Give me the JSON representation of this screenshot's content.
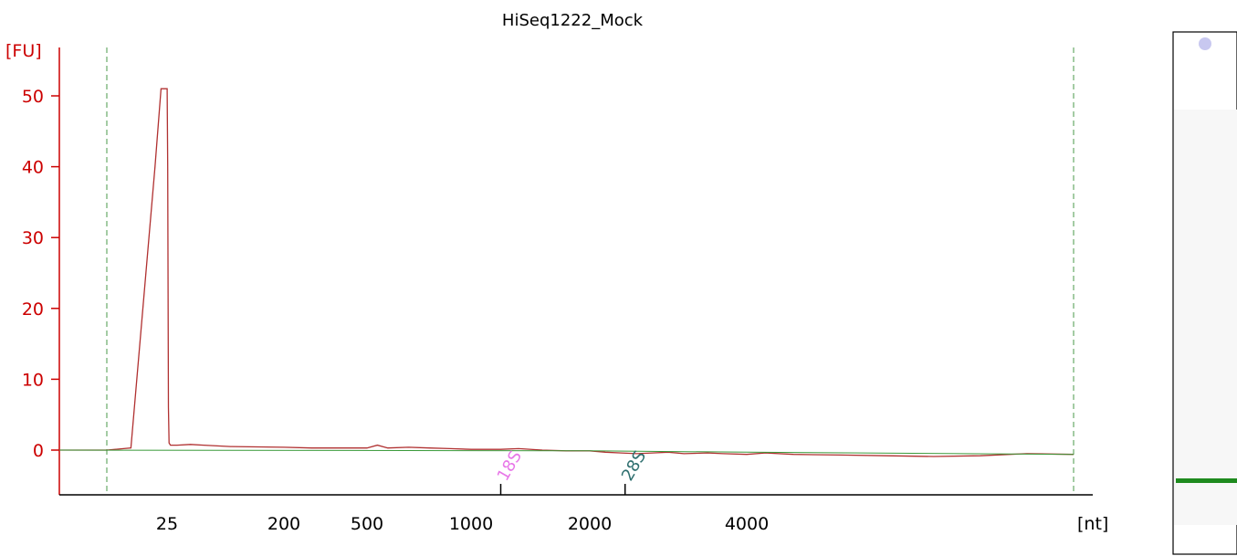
{
  "chart_data": {
    "type": "line",
    "title": "HiSeq1222_Mock",
    "yunit": "[FU]",
    "xunit": "[nt]",
    "yticks": [
      0,
      10,
      20,
      30,
      40,
      50
    ],
    "ylim": [
      -6,
      56
    ],
    "xticks": [
      "25",
      "200",
      "500",
      "1000",
      "2000",
      "4000"
    ],
    "markers": [
      {
        "label": "18S",
        "color": "#e878e8",
        "x": 1250
      },
      {
        "label": "28S",
        "color": "#2f6f6f",
        "x": 2450
      }
    ],
    "series": [
      {
        "color": "#b03030",
        "points": [
          [
            0,
            0
          ],
          [
            20,
            0
          ],
          [
            22,
            0.3
          ],
          [
            24,
            40
          ],
          [
            24.5,
            51
          ],
          [
            25.2,
            51
          ],
          [
            26,
            40
          ],
          [
            27,
            6
          ],
          [
            28,
            1
          ],
          [
            30,
            0.7
          ],
          [
            40,
            0.7
          ],
          [
            60,
            0.8
          ],
          [
            80,
            0.7
          ],
          [
            120,
            0.5
          ],
          [
            200,
            0.4
          ],
          [
            300,
            0.3
          ],
          [
            400,
            0.3
          ],
          [
            500,
            0.3
          ],
          [
            550,
            0.7
          ],
          [
            600,
            0.3
          ],
          [
            700,
            0.4
          ],
          [
            800,
            0.3
          ],
          [
            900,
            0.2
          ],
          [
            1000,
            0.1
          ],
          [
            1100,
            0.1
          ],
          [
            1250,
            0.1
          ],
          [
            1400,
            0.2
          ],
          [
            1600,
            0
          ],
          [
            1800,
            -0.1
          ],
          [
            2000,
            -0.1
          ],
          [
            2200,
            -0.3
          ],
          [
            2400,
            -0.4
          ],
          [
            2600,
            -0.5
          ],
          [
            2800,
            -0.4
          ],
          [
            3000,
            -0.3
          ],
          [
            3200,
            -0.5
          ],
          [
            3500,
            -0.4
          ],
          [
            3700,
            -0.5
          ],
          [
            4000,
            -0.6
          ],
          [
            4200,
            -0.4
          ],
          [
            4500,
            -0.6
          ],
          [
            5000,
            -0.7
          ],
          [
            5500,
            -0.8
          ],
          [
            6000,
            -0.9
          ],
          [
            6500,
            -0.8
          ],
          [
            7000,
            -0.5
          ],
          [
            7500,
            -0.6
          ]
        ]
      },
      {
        "color": "#3a9a3a",
        "points": [
          [
            0,
            0
          ],
          [
            2000,
            -0.1
          ],
          [
            4000,
            -0.3
          ],
          [
            7500,
            -0.6
          ]
        ]
      }
    ]
  },
  "gel_lane": {
    "band_color": "#1e8a1e",
    "marker_color": "#c8c8f0"
  }
}
